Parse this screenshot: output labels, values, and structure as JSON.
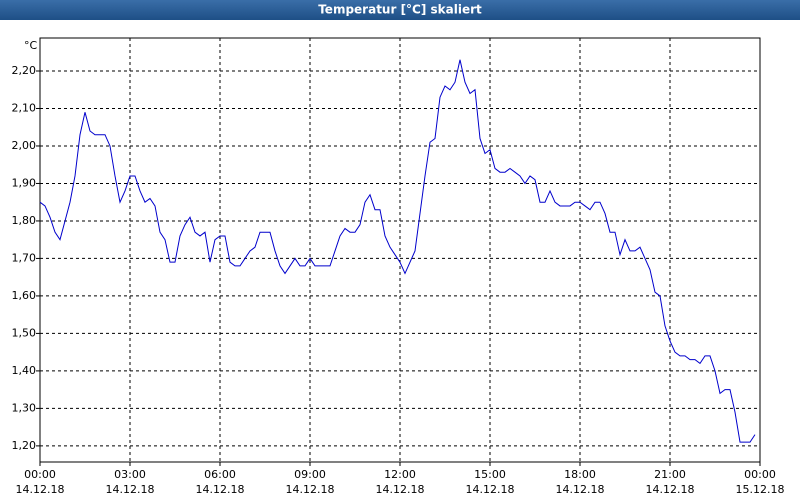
{
  "chart_data": {
    "type": "line",
    "title": "Temperatur [°C] skaliert",
    "y_unit": "°C",
    "x": [
      0,
      10,
      20,
      30,
      40,
      50,
      60,
      70,
      80,
      90,
      100,
      110,
      120,
      130,
      140,
      150,
      160,
      170,
      180,
      190,
      200,
      210,
      220,
      230,
      240,
      250,
      260,
      270,
      280,
      290,
      300,
      310,
      320,
      330,
      340,
      350,
      360,
      370,
      380,
      390,
      400,
      410,
      420,
      430,
      440,
      450,
      460,
      470,
      480,
      490,
      500,
      510,
      520,
      530,
      540,
      550,
      560,
      570,
      580,
      590,
      600,
      610,
      620,
      630,
      640,
      650,
      660,
      670,
      680,
      690,
      700,
      710,
      720,
      730,
      740,
      750,
      760,
      770,
      780,
      790,
      800,
      810,
      820,
      830,
      840,
      850,
      860,
      870,
      880,
      890,
      900,
      910,
      920,
      930,
      940,
      950,
      960,
      970,
      980,
      990,
      1000,
      1010,
      1020,
      1030,
      1040,
      1050,
      1060,
      1070,
      1080,
      1090,
      1100,
      1110,
      1120,
      1130,
      1140,
      1150,
      1160,
      1170,
      1180,
      1190,
      1200,
      1210,
      1220,
      1230,
      1240,
      1250,
      1260,
      1270,
      1280,
      1290,
      1300,
      1310,
      1320,
      1330,
      1340,
      1350,
      1360,
      1370,
      1380,
      1390,
      1400,
      1410,
      1420,
      1430
    ],
    "series": [
      {
        "name": "Temperatur",
        "color": "#0000cc",
        "values": [
          1.85,
          1.84,
          1.81,
          1.77,
          1.75,
          1.8,
          1.85,
          1.92,
          2.03,
          2.09,
          2.04,
          2.03,
          2.03,
          2.03,
          2.0,
          1.92,
          1.85,
          1.88,
          1.92,
          1.92,
          1.88,
          1.85,
          1.86,
          1.84,
          1.77,
          1.75,
          1.69,
          1.69,
          1.76,
          1.79,
          1.81,
          1.77,
          1.76,
          1.77,
          1.69,
          1.75,
          1.76,
          1.76,
          1.69,
          1.68,
          1.68,
          1.7,
          1.72,
          1.73,
          1.77,
          1.77,
          1.77,
          1.72,
          1.68,
          1.66,
          1.68,
          1.7,
          1.68,
          1.68,
          1.7,
          1.68,
          1.68,
          1.68,
          1.68,
          1.72,
          1.76,
          1.78,
          1.77,
          1.77,
          1.79,
          1.85,
          1.87,
          1.83,
          1.83,
          1.76,
          1.73,
          1.71,
          1.69,
          1.66,
          1.69,
          1.72,
          1.82,
          1.92,
          2.01,
          2.02,
          2.13,
          2.16,
          2.15,
          2.17,
          2.23,
          2.17,
          2.14,
          2.15,
          2.02,
          1.98,
          1.99,
          1.94,
          1.93,
          1.93,
          1.94,
          1.93,
          1.92,
          1.9,
          1.92,
          1.91,
          1.85,
          1.85,
          1.88,
          1.85,
          1.84,
          1.84,
          1.84,
          1.85,
          1.85,
          1.84,
          1.83,
          1.85,
          1.85,
          1.82,
          1.77,
          1.77,
          1.71,
          1.75,
          1.72,
          1.72,
          1.73,
          1.7,
          1.67,
          1.61,
          1.6,
          1.52,
          1.48,
          1.45,
          1.44,
          1.44,
          1.43,
          1.43,
          1.42,
          1.44,
          1.44,
          1.4,
          1.34,
          1.35,
          1.35,
          1.29,
          1.21,
          1.21,
          1.21,
          1.23
        ]
      }
    ],
    "xlim": [
      0,
      1440
    ],
    "xticks": [
      {
        "value": 0,
        "label": "00:00"
      },
      {
        "value": 180,
        "label": "03:00"
      },
      {
        "value": 360,
        "label": "06:00"
      },
      {
        "value": 540,
        "label": "09:00"
      },
      {
        "value": 720,
        "label": "12:00"
      },
      {
        "value": 900,
        "label": "15:00"
      },
      {
        "value": 1080,
        "label": "18:00"
      },
      {
        "value": 1260,
        "label": "21:00"
      },
      {
        "value": 1440,
        "label": "00:00"
      }
    ],
    "xtick_dates": [
      "14.12.18",
      "14.12.18",
      "14.12.18",
      "14.12.18",
      "14.12.18",
      "14.12.18",
      "14.12.18",
      "14.12.18",
      "15.12.18"
    ],
    "ylim": [
      1.157,
      2.288
    ],
    "yticks": [
      {
        "value": 1.2,
        "label": "1,20"
      },
      {
        "value": 1.3,
        "label": "1,30"
      },
      {
        "value": 1.4,
        "label": "1,40"
      },
      {
        "value": 1.5,
        "label": "1,50"
      },
      {
        "value": 1.6,
        "label": "1,60"
      },
      {
        "value": 1.7,
        "label": "1,70"
      },
      {
        "value": 1.8,
        "label": "1,80"
      },
      {
        "value": 1.9,
        "label": "1,90"
      },
      {
        "value": 2.0,
        "label": "2,00"
      },
      {
        "value": 2.1,
        "label": "2,10"
      },
      {
        "value": 2.2,
        "label": "2,20"
      }
    ],
    "grid": true
  }
}
